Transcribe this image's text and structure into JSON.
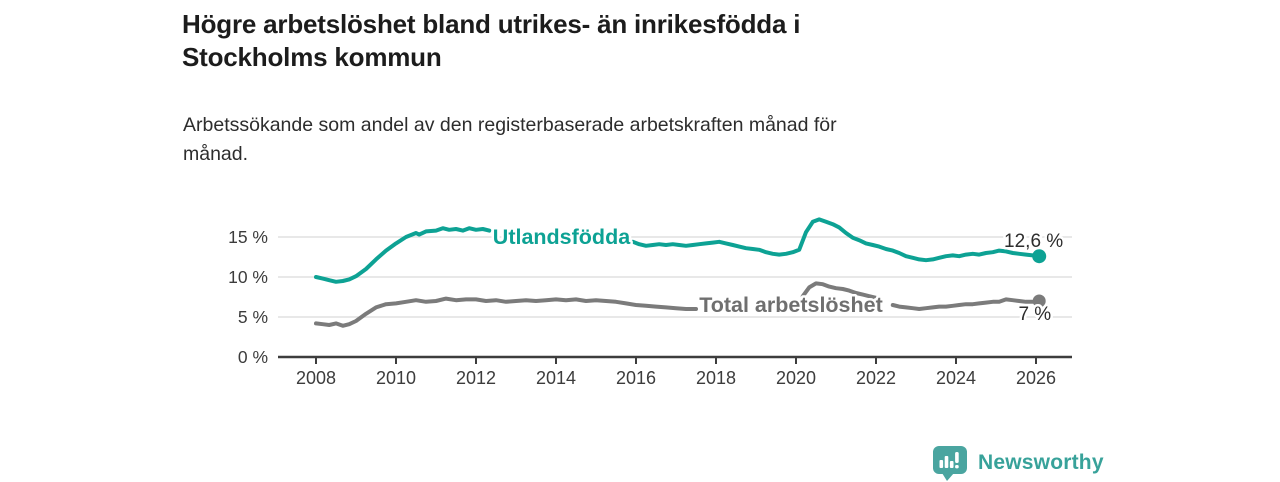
{
  "header": {
    "title": "Högre arbetslöshet bland utrikes- än inrikesfödda i Stockholms kommun",
    "subtitle": "Arbetssökande som andel av den registerbaserade arbetskraften månad för månad."
  },
  "footer": {
    "brand": "Newsworthy",
    "brand_color": "#38a29a",
    "logo_color": "#4aa5a0"
  },
  "chart_data": {
    "type": "line",
    "title": "",
    "xlabel": "",
    "ylabel": "",
    "unit": "%",
    "grid": "horizontal-only",
    "legend_position": "inline-on-line",
    "xlim": [
      2007.05,
      2026.9
    ],
    "ylim": [
      0,
      18
    ],
    "axis_color": "#3d3d3d",
    "grid_color": "#d9d9d9",
    "tick_text_color": "#3c3c3c",
    "value_label_color": "#2d2d2d",
    "x_ticks": [
      {
        "value": 2008,
        "label": "2008"
      },
      {
        "value": 2010,
        "label": "2010"
      },
      {
        "value": 2012,
        "label": "2012"
      },
      {
        "value": 2014,
        "label": "2014"
      },
      {
        "value": 2016,
        "label": "2016"
      },
      {
        "value": 2018,
        "label": "2018"
      },
      {
        "value": 2020,
        "label": "2020"
      },
      {
        "value": 2022,
        "label": "2022"
      },
      {
        "value": 2024,
        "label": "2024"
      },
      {
        "value": 2026,
        "label": "2026"
      }
    ],
    "y_ticks": [
      {
        "value": 0,
        "label": "0 %"
      },
      {
        "value": 5,
        "label": "5 %"
      },
      {
        "value": 10,
        "label": "10 %"
      },
      {
        "value": 15,
        "label": "15 %"
      }
    ],
    "series": [
      {
        "name": "Utlandsfödda",
        "color": "#0da294",
        "line_width": 4,
        "end_value": 12.6,
        "end_label": {
          "text": "12,6 %",
          "x": 2026.68,
          "y": 13.75,
          "anchor": "end"
        },
        "inline_label": {
          "text": "Utlandsfödda",
          "x": 2012.42,
          "y": 14.1,
          "color": "#0da294"
        },
        "segments": [
          [
            [
              2008.0,
              10.0
            ],
            [
              2008.17,
              9.8
            ],
            [
              2008.33,
              9.6
            ],
            [
              2008.5,
              9.4
            ],
            [
              2008.67,
              9.5
            ],
            [
              2008.83,
              9.7
            ],
            [
              2009.0,
              10.1
            ],
            [
              2009.25,
              11.0
            ],
            [
              2009.5,
              12.2
            ],
            [
              2009.75,
              13.3
            ],
            [
              2010.0,
              14.2
            ],
            [
              2010.25,
              15.0
            ],
            [
              2010.5,
              15.5
            ],
            [
              2010.58,
              15.3
            ],
            [
              2010.75,
              15.7
            ],
            [
              2011.0,
              15.8
            ],
            [
              2011.17,
              16.1
            ],
            [
              2011.33,
              15.9
            ],
            [
              2011.5,
              16.0
            ],
            [
              2011.67,
              15.8
            ],
            [
              2011.83,
              16.1
            ],
            [
              2012.0,
              15.9
            ],
            [
              2012.17,
              16.0
            ],
            [
              2012.33,
              15.8
            ]
          ],
          [
            [
              2015.92,
              14.4
            ],
            [
              2016.08,
              14.1
            ],
            [
              2016.25,
              13.9
            ],
            [
              2016.42,
              14.0
            ],
            [
              2016.58,
              14.1
            ],
            [
              2016.75,
              14.0
            ],
            [
              2016.92,
              14.1
            ],
            [
              2017.08,
              14.0
            ],
            [
              2017.25,
              13.9
            ],
            [
              2017.42,
              14.0
            ],
            [
              2017.58,
              14.1
            ],
            [
              2017.75,
              14.2
            ],
            [
              2017.92,
              14.3
            ],
            [
              2018.08,
              14.4
            ],
            [
              2018.25,
              14.2
            ],
            [
              2018.42,
              14.0
            ],
            [
              2018.58,
              13.8
            ],
            [
              2018.75,
              13.6
            ],
            [
              2018.92,
              13.5
            ],
            [
              2019.08,
              13.4
            ],
            [
              2019.25,
              13.1
            ],
            [
              2019.42,
              12.9
            ],
            [
              2019.58,
              12.8
            ],
            [
              2019.75,
              12.9
            ],
            [
              2019.92,
              13.1
            ],
            [
              2020.08,
              13.4
            ],
            [
              2020.25,
              15.6
            ],
            [
              2020.42,
              16.9
            ],
            [
              2020.58,
              17.2
            ],
            [
              2020.75,
              16.9
            ],
            [
              2020.92,
              16.6
            ],
            [
              2021.08,
              16.2
            ],
            [
              2021.25,
              15.5
            ],
            [
              2021.42,
              14.9
            ],
            [
              2021.58,
              14.6
            ],
            [
              2021.75,
              14.2
            ],
            [
              2021.92,
              14.0
            ],
            [
              2022.08,
              13.8
            ],
            [
              2022.25,
              13.5
            ],
            [
              2022.42,
              13.3
            ],
            [
              2022.58,
              13.0
            ],
            [
              2022.75,
              12.6
            ],
            [
              2022.92,
              12.4
            ],
            [
              2023.08,
              12.2
            ],
            [
              2023.25,
              12.1
            ],
            [
              2023.42,
              12.2
            ],
            [
              2023.58,
              12.4
            ],
            [
              2023.75,
              12.6
            ],
            [
              2023.92,
              12.7
            ],
            [
              2024.08,
              12.6
            ],
            [
              2024.25,
              12.8
            ],
            [
              2024.42,
              12.9
            ],
            [
              2024.58,
              12.8
            ],
            [
              2024.75,
              13.0
            ],
            [
              2024.92,
              13.1
            ],
            [
              2025.08,
              13.3
            ],
            [
              2025.25,
              13.2
            ],
            [
              2025.42,
              13.0
            ],
            [
              2025.58,
              12.9
            ],
            [
              2025.75,
              12.8
            ],
            [
              2025.92,
              12.7
            ],
            [
              2026.08,
              12.6
            ]
          ]
        ]
      },
      {
        "name": "Total arbetslöshet",
        "color": "#7b7b7b",
        "line_width": 4,
        "end_value": 7,
        "end_label": {
          "text": "7 %",
          "x": 2026.38,
          "y": 4.6,
          "anchor": "end"
        },
        "inline_label": {
          "text": "Total arbetslöshet",
          "x": 2017.58,
          "y": 5.6,
          "color": "#6f6f6f"
        },
        "segments": [
          [
            [
              2008.0,
              4.2
            ],
            [
              2008.17,
              4.1
            ],
            [
              2008.33,
              4.0
            ],
            [
              2008.5,
              4.2
            ],
            [
              2008.67,
              3.9
            ],
            [
              2008.83,
              4.1
            ],
            [
              2009.0,
              4.5
            ],
            [
              2009.25,
              5.4
            ],
            [
              2009.5,
              6.2
            ],
            [
              2009.75,
              6.6
            ],
            [
              2010.0,
              6.7
            ],
            [
              2010.25,
              6.9
            ],
            [
              2010.5,
              7.1
            ],
            [
              2010.75,
              6.9
            ],
            [
              2011.0,
              7.0
            ],
            [
              2011.25,
              7.3
            ],
            [
              2011.5,
              7.1
            ],
            [
              2011.75,
              7.2
            ],
            [
              2012.0,
              7.2
            ],
            [
              2012.25,
              7.0
            ],
            [
              2012.5,
              7.1
            ],
            [
              2012.75,
              6.9
            ],
            [
              2013.0,
              7.0
            ],
            [
              2013.25,
              7.1
            ],
            [
              2013.5,
              7.0
            ],
            [
              2013.75,
              7.1
            ],
            [
              2014.0,
              7.2
            ],
            [
              2014.25,
              7.1
            ],
            [
              2014.5,
              7.2
            ],
            [
              2014.75,
              7.0
            ],
            [
              2015.0,
              7.1
            ],
            [
              2015.25,
              7.0
            ],
            [
              2015.5,
              6.9
            ],
            [
              2015.75,
              6.7
            ],
            [
              2016.0,
              6.5
            ],
            [
              2016.25,
              6.4
            ],
            [
              2016.5,
              6.3
            ],
            [
              2016.75,
              6.2
            ],
            [
              2017.0,
              6.1
            ],
            [
              2017.25,
              6.0
            ],
            [
              2017.5,
              6.0
            ]
          ],
          [
            [
              2020.17,
              7.6
            ],
            [
              2020.33,
              8.7
            ],
            [
              2020.5,
              9.2
            ],
            [
              2020.67,
              9.1
            ],
            [
              2020.83,
              8.8
            ],
            [
              2021.0,
              8.6
            ],
            [
              2021.17,
              8.5
            ],
            [
              2021.33,
              8.3
            ],
            [
              2021.5,
              8.0
            ],
            [
              2021.67,
              7.8
            ],
            [
              2021.83,
              7.6
            ],
            [
              2022.0,
              7.4
            ]
          ],
          [
            [
              2022.42,
              6.5
            ],
            [
              2022.58,
              6.3
            ],
            [
              2022.75,
              6.2
            ],
            [
              2022.92,
              6.1
            ],
            [
              2023.08,
              6.0
            ],
            [
              2023.25,
              6.1
            ],
            [
              2023.42,
              6.2
            ],
            [
              2023.58,
              6.3
            ],
            [
              2023.75,
              6.3
            ],
            [
              2023.92,
              6.4
            ],
            [
              2024.08,
              6.5
            ],
            [
              2024.25,
              6.6
            ],
            [
              2024.42,
              6.6
            ],
            [
              2024.58,
              6.7
            ],
            [
              2024.75,
              6.8
            ],
            [
              2024.92,
              6.9
            ],
            [
              2025.08,
              6.9
            ],
            [
              2025.25,
              7.2
            ],
            [
              2025.42,
              7.1
            ],
            [
              2025.58,
              7.0
            ],
            [
              2025.75,
              6.9
            ],
            [
              2025.92,
              6.9
            ],
            [
              2026.08,
              7.0
            ]
          ]
        ]
      }
    ]
  }
}
